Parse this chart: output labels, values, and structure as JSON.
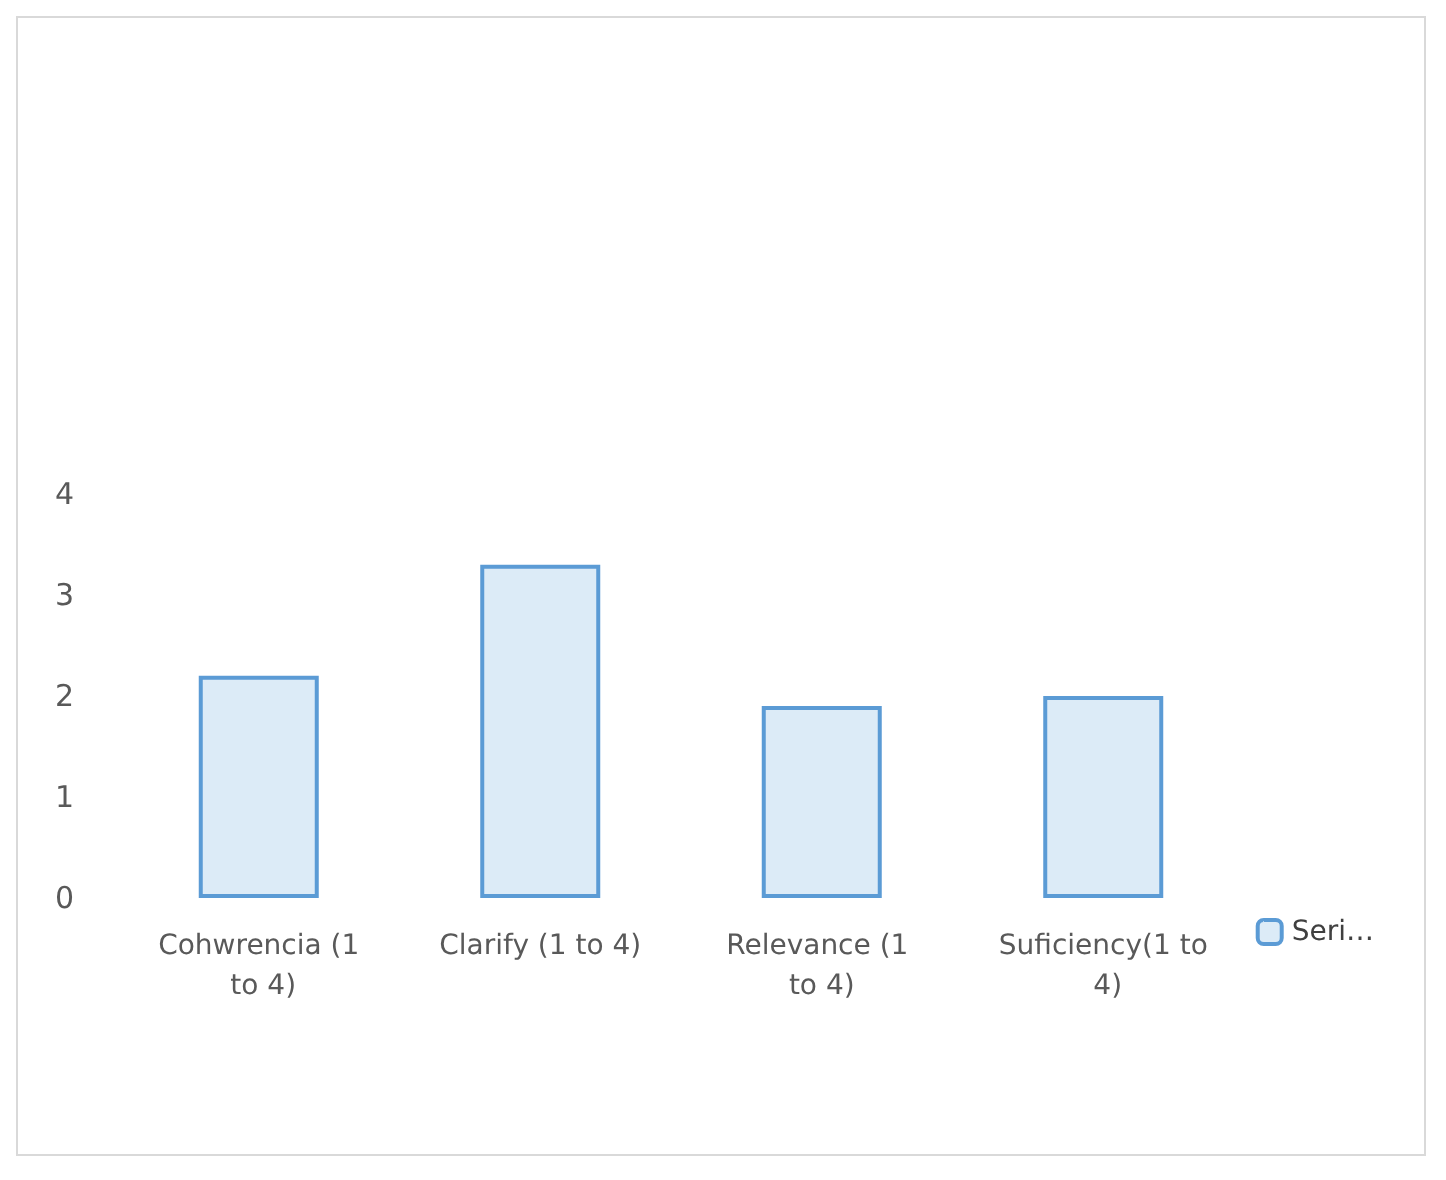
{
  "chart_data": {
    "type": "bar",
    "categories": [
      "Cohwrencia (1 to 4)",
      "Clarify (1 to 4)",
      "Relevance (1 to 4)",
      "Suficiency(1 to 4)"
    ],
    "series": [
      {
        "name": "Seri…",
        "color": "#dcebf7",
        "values": [
          2.2,
          3.3,
          1.9,
          2.0
        ]
      }
    ],
    "ylim": [
      0,
      4
    ],
    "yticks": [
      0,
      1,
      2,
      3,
      4
    ],
    "grid": false,
    "legend": "right"
  }
}
